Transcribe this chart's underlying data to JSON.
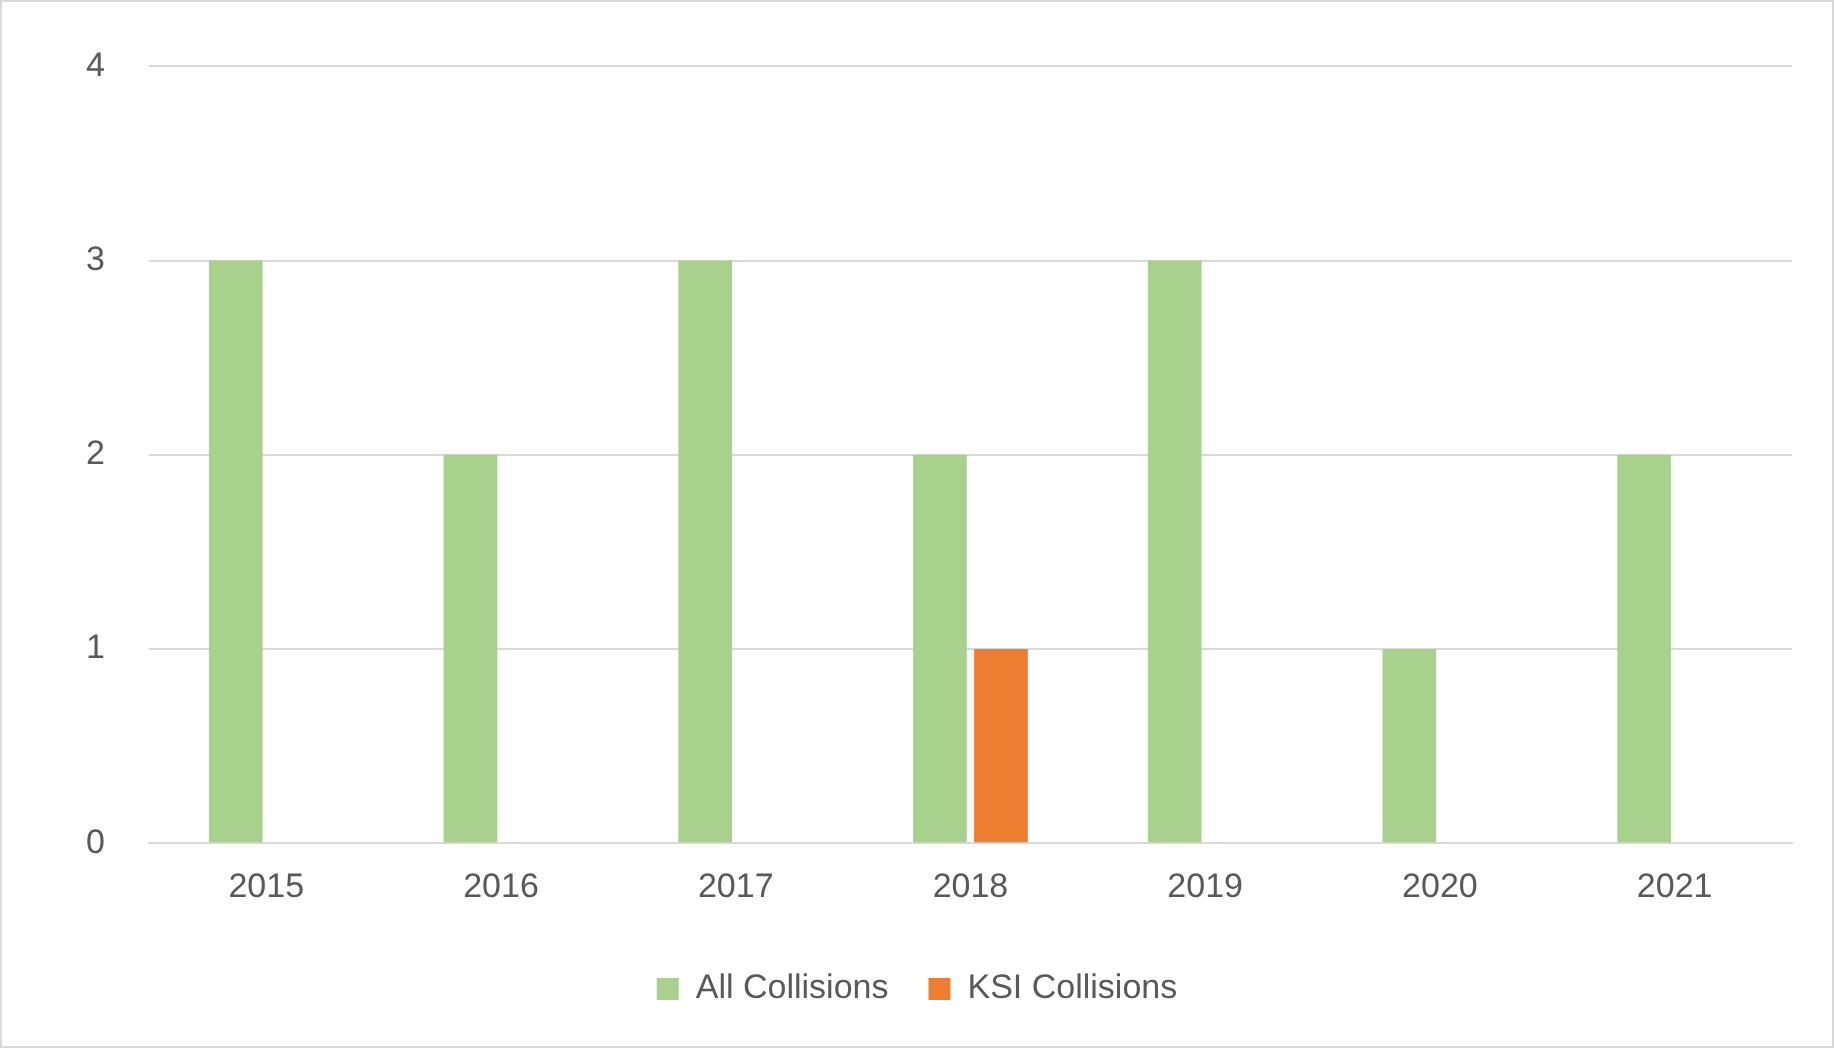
{
  "chart_data": {
    "type": "bar",
    "categories": [
      "2015",
      "2016",
      "2017",
      "2018",
      "2019",
      "2020",
      "2021"
    ],
    "series": [
      {
        "name": "All Collisions",
        "color": "#a9d18e",
        "values": [
          3,
          2,
          3,
          2,
          3,
          1,
          2
        ]
      },
      {
        "name": "KSI Collisions",
        "color": "#ed7d31",
        "values": [
          0,
          0,
          0,
          1,
          0,
          0,
          0
        ]
      }
    ],
    "ylim": [
      0,
      4
    ],
    "yticks": [
      0,
      1,
      2,
      3,
      4
    ],
    "grid": "y",
    "legend": "bottom"
  }
}
